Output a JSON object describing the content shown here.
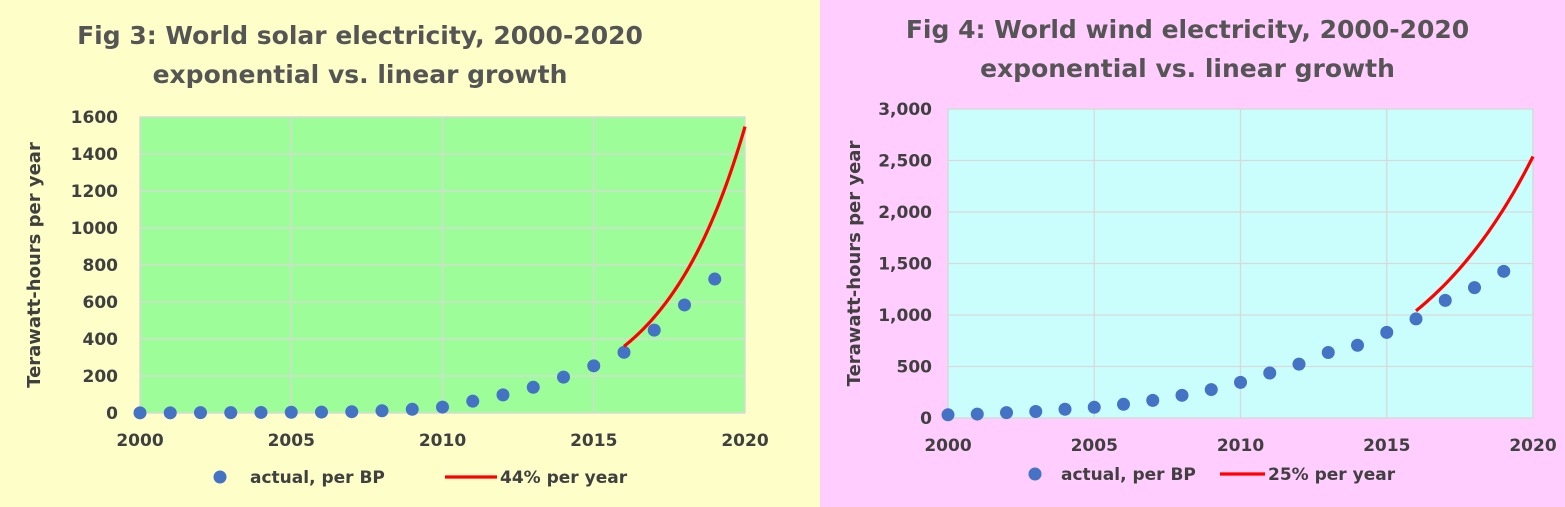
{
  "charts": [
    {
      "title_line1": "Fig 3: World solar electricity, 2000-2020",
      "title_line2": "exponential vs. linear growth",
      "background": "#fefec8",
      "plot_background": "#9dfe99",
      "ylabel": "Terawatt-hours per year",
      "legend_actual": "actual, per BP",
      "legend_fit": "44% per year"
    },
    {
      "title_line1": "Fig 4: World wind electricity, 2000-2020",
      "title_line2": "exponential vs. linear growth",
      "background": "#ffcdfe",
      "plot_background": "#c9fefd",
      "ylabel": "Terawatt-hours per year",
      "legend_actual": "actual, per BP",
      "legend_fit": "25% per year"
    }
  ],
  "chart_data": [
    {
      "type": "scatter",
      "title": "Fig 3: World solar electricity, 2000-2020 exponential vs. linear growth",
      "xlabel": "",
      "ylabel": "Terawatt-hours per year",
      "xlim": [
        2000,
        2020
      ],
      "ylim": [
        0,
        1600
      ],
      "x_ticks": [
        2000,
        2005,
        2010,
        2015,
        2020
      ],
      "x_tick_labels": [
        "2000",
        "2005",
        "2010",
        "2015",
        "2020"
      ],
      "y_ticks": [
        0,
        200,
        400,
        600,
        800,
        1000,
        1200,
        1400,
        1600
      ],
      "y_tick_labels": [
        "0",
        "200",
        "400",
        "600",
        "800",
        "1000",
        "1200",
        "1400",
        "1600"
      ],
      "grid": true,
      "legend": "bottom",
      "series": [
        {
          "name": "actual, per BP",
          "kind": "points",
          "color": "#4472c4",
          "x": [
            2000,
            2001,
            2002,
            2003,
            2004,
            2005,
            2006,
            2007,
            2008,
            2009,
            2010,
            2011,
            2012,
            2013,
            2014,
            2015,
            2016,
            2017,
            2018,
            2019
          ],
          "y": [
            1,
            1,
            2,
            2,
            3,
            4,
            5,
            7,
            12,
            20,
            32,
            64,
            98,
            139,
            194,
            255,
            328,
            448,
            584,
            724
          ]
        },
        {
          "name": "44% per year",
          "kind": "curve",
          "color": "#ff0000",
          "start_year": 2016,
          "start_value": 360,
          "annual_growth": 0.44,
          "end_year": 2020
        }
      ]
    },
    {
      "type": "scatter",
      "title": "Fig 4: World wind electricity, 2000-2020 exponential vs. linear growth",
      "xlabel": "",
      "ylabel": "Terawatt-hours per year",
      "xlim": [
        2000,
        2020
      ],
      "ylim": [
        0,
        3000
      ],
      "x_ticks": [
        2000,
        2005,
        2010,
        2015,
        2020
      ],
      "x_tick_labels": [
        "2000",
        "2005",
        "2010",
        "2015",
        "2020"
      ],
      "y_ticks": [
        0,
        500,
        1000,
        1500,
        2000,
        2500,
        3000
      ],
      "y_tick_labels": [
        "0",
        "500",
        "1,000",
        "1,500",
        "2,000",
        "2,500",
        "3,000"
      ],
      "grid": true,
      "legend": "bottom",
      "series": [
        {
          "name": "actual, per BP",
          "kind": "points",
          "color": "#4472c4",
          "x": [
            2000,
            2001,
            2002,
            2003,
            2004,
            2005,
            2006,
            2007,
            2008,
            2009,
            2010,
            2011,
            2012,
            2013,
            2014,
            2015,
            2016,
            2017,
            2018,
            2019
          ],
          "y": [
            31,
            38,
            52,
            63,
            85,
            104,
            133,
            171,
            220,
            276,
            346,
            437,
            523,
            636,
            706,
            831,
            962,
            1142,
            1266,
            1424
          ]
        },
        {
          "name": "25% per year",
          "kind": "curve",
          "color": "#ff0000",
          "start_year": 2016,
          "start_value": 1040,
          "annual_growth": 0.25,
          "end_year": 2020
        }
      ]
    }
  ]
}
